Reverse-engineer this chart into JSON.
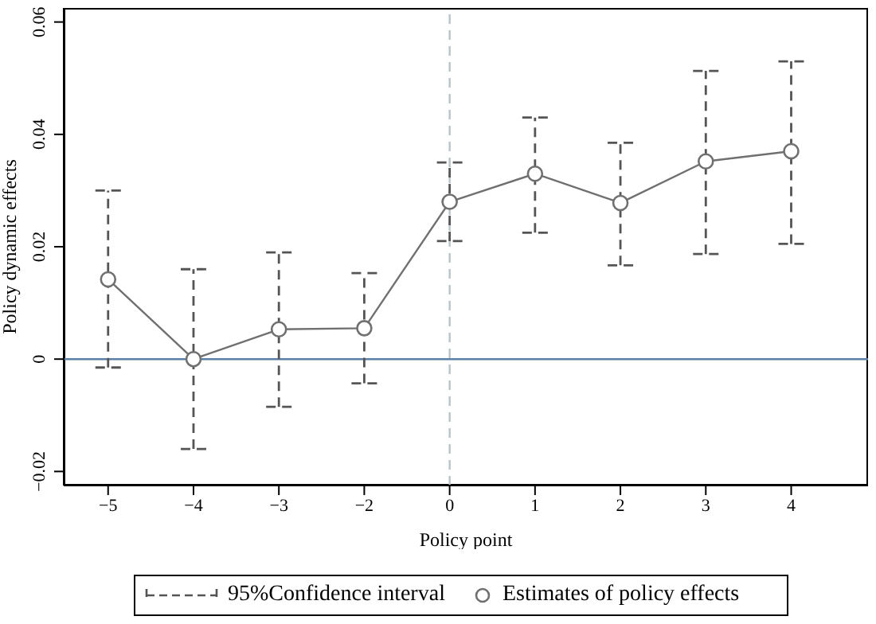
{
  "chart_data": {
    "type": "line",
    "xlabel": "Policy point",
    "ylabel": "Policy dynamic effects",
    "categories": [
      "−5",
      "−4",
      "−3",
      "−2",
      "0",
      "1",
      "2",
      "3",
      "4"
    ],
    "series": [
      {
        "name": "Estimates of policy effects",
        "color": "#707070",
        "values": [
          0.0142,
          0,
          0.0053,
          0.0055,
          0.028,
          0.033,
          0.0278,
          0.0352,
          0.037
        ],
        "errors": [
          [
            -0.0015,
            0.03
          ],
          [
            -0.016,
            0.016
          ],
          [
            -0.0085,
            0.019
          ],
          [
            -0.0043,
            0.0153
          ],
          [
            0.021,
            0.035
          ],
          [
            0.0225,
            0.043
          ],
          [
            0.0167,
            0.0385
          ],
          [
            0.0187,
            0.0513
          ],
          [
            0.0205,
            0.053
          ]
        ]
      }
    ],
    "annotations": [
      "95%Confidence interval"
    ],
    "ylim": [
      -0.0225,
      0.0625
    ],
    "yticks": [
      -0.02,
      0,
      0.02,
      0.04,
      0.06
    ],
    "ref_lines": [
      {
        "axis": "y",
        "value": 0,
        "color": "#5b7fa6",
        "line_style": "solid"
      },
      {
        "axis": "x",
        "value": "0",
        "color": "#b8c4c8",
        "line_style": "dashed"
      }
    ],
    "marker": "circle",
    "line_style": "solid",
    "legend": "bottom"
  }
}
